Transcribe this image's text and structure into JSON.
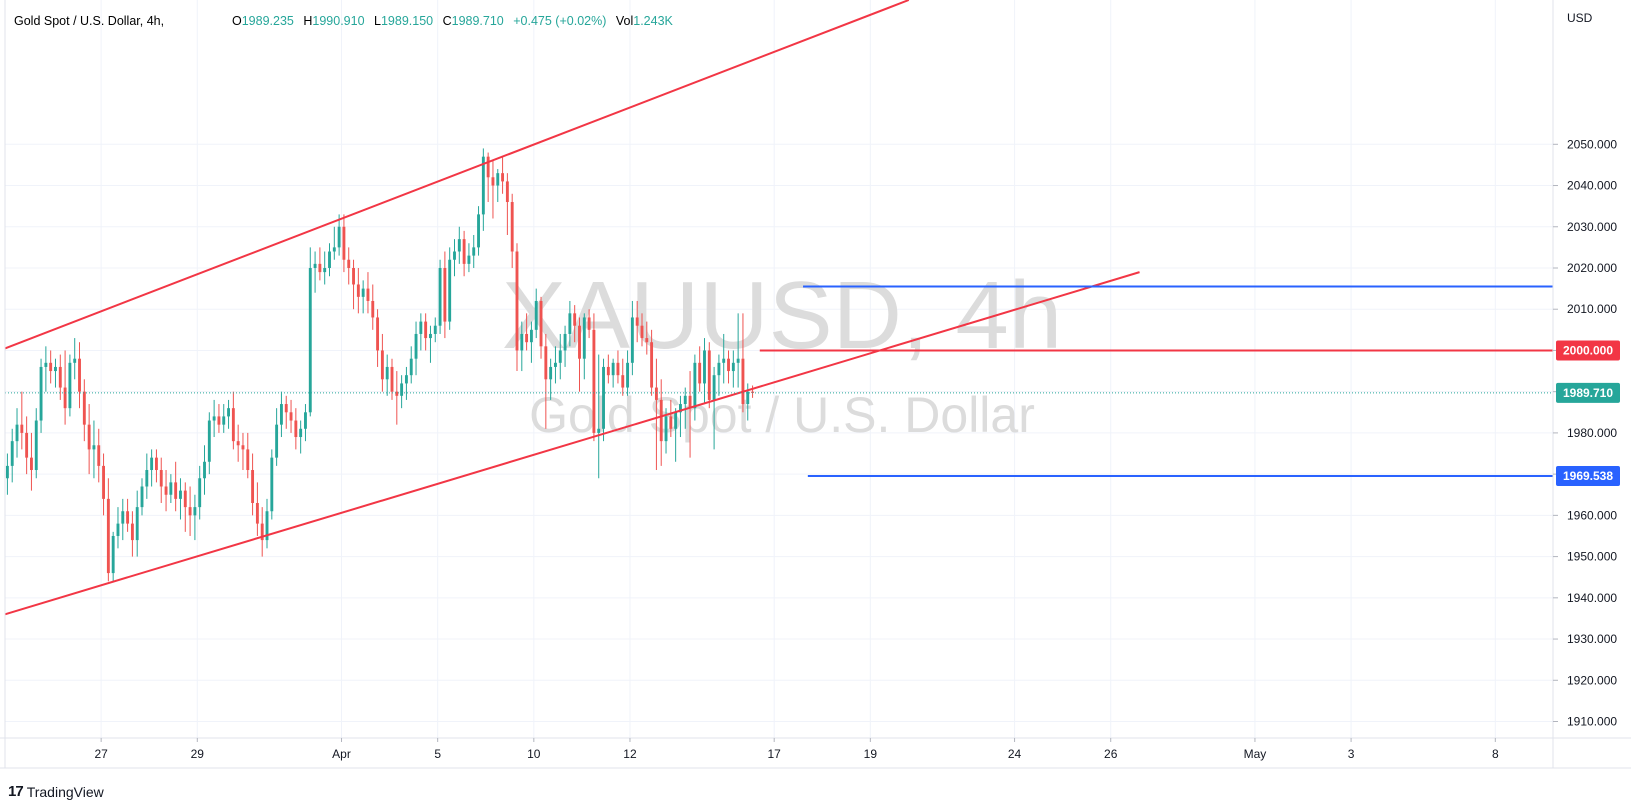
{
  "header": {
    "symbol": "Gold Spot / U.S. Dollar, 4h,",
    "o_label": "O",
    "o_val": "1989.235",
    "h_label": "H",
    "h_val": "1990.910",
    "l_label": "L",
    "l_val": "1989.150",
    "c_label": "C",
    "c_val": "1989.710",
    "change": "+0.475 (+0.02%)",
    "vol_label": "Vol",
    "vol_val": "1.243K"
  },
  "watermark": {
    "ticker": "XAUUSD, 4h",
    "name": "Gold Spot / U.S. Dollar"
  },
  "axis": {
    "currency": "USD"
  },
  "price_tags": {
    "current": "1989.710",
    "resistance": "2000.000",
    "support": "1969.538"
  },
  "brand": {
    "logo": "17",
    "name": "TradingView"
  },
  "colors": {
    "up": "#26a69a",
    "down": "#ef5350",
    "red_line": "#f23645",
    "blue_line": "#2962ff",
    "grid": "#f0f3fa",
    "current": "#26a69a"
  },
  "chart_data": {
    "type": "candlestick",
    "ylim": [
      1906,
      2085
    ],
    "x_range": [
      0,
      322
    ],
    "y_ticks": [
      1910,
      1920,
      1930,
      1940,
      1950,
      1960,
      1970,
      1980,
      1990,
      2000,
      2010,
      2020,
      2030,
      2040,
      2050
    ],
    "x_ticks": [
      {
        "label": "27",
        "x": 20
      },
      {
        "label": "29",
        "x": 40
      },
      {
        "label": "Apr",
        "x": 70
      },
      {
        "label": "5",
        "x": 90
      },
      {
        "label": "10",
        "x": 110
      },
      {
        "label": "12",
        "x": 130
      },
      {
        "label": "17",
        "x": 160
      },
      {
        "label": "19",
        "x": 180
      },
      {
        "label": "24",
        "x": 210
      },
      {
        "label": "26",
        "x": 230
      },
      {
        "label": "May",
        "x": 260
      },
      {
        "label": "3",
        "x": 280
      },
      {
        "label": "8",
        "x": 310
      }
    ],
    "candles": [
      [
        1969,
        1975,
        1965,
        1972
      ],
      [
        1972,
        1981,
        1968,
        1978
      ],
      [
        1978,
        1986,
        1974,
        1982
      ],
      [
        1982,
        1990,
        1976,
        1980
      ],
      [
        1980,
        1984,
        1970,
        1974
      ],
      [
        1974,
        1980,
        1966,
        1971
      ],
      [
        1971,
        1986,
        1969,
        1983
      ],
      [
        1983,
        1998,
        1980,
        1996
      ],
      [
        1996,
        2001,
        1990,
        1997
      ],
      [
        1997,
        2000,
        1992,
        1995
      ],
      [
        1995,
        1998,
        1991,
        1996
      ],
      [
        1996,
        1999,
        1988,
        1991
      ],
      [
        1991,
        2000,
        1982,
        1986
      ],
      [
        1986,
        1999,
        1984,
        1997
      ],
      [
        1997,
        2003,
        1993,
        1998
      ],
      [
        1998,
        2002,
        1986,
        1990
      ],
      [
        1990,
        1993,
        1978,
        1982
      ],
      [
        1982,
        1987,
        1970,
        1976
      ],
      [
        1976,
        1983,
        1969,
        1977
      ],
      [
        1977,
        1981,
        1968,
        1972
      ],
      [
        1972,
        1975,
        1960,
        1964
      ],
      [
        1964,
        1969,
        1944,
        1946
      ],
      [
        1946,
        1956,
        1944,
        1955
      ],
      [
        1955,
        1962,
        1952,
        1958
      ],
      [
        1958,
        1964,
        1954,
        1961
      ],
      [
        1961,
        1964,
        1956,
        1958
      ],
      [
        1958,
        1961,
        1950,
        1954
      ],
      [
        1954,
        1966,
        1950,
        1962
      ],
      [
        1962,
        1969,
        1960,
        1967
      ],
      [
        1967,
        1975,
        1964,
        1971
      ],
      [
        1971,
        1976,
        1967,
        1974
      ],
      [
        1974,
        1976,
        1968,
        1971
      ],
      [
        1971,
        1974,
        1963,
        1967
      ],
      [
        1967,
        1971,
        1961,
        1965
      ],
      [
        1965,
        1970,
        1963,
        1968
      ],
      [
        1968,
        1973,
        1961,
        1964
      ],
      [
        1964,
        1969,
        1959,
        1966
      ],
      [
        1966,
        1968,
        1956,
        1962
      ],
      [
        1962,
        1967,
        1955,
        1960
      ],
      [
        1960,
        1965,
        1954,
        1962
      ],
      [
        1962,
        1972,
        1959,
        1969
      ],
      [
        1969,
        1977,
        1965,
        1973
      ],
      [
        1973,
        1985,
        1970,
        1983
      ],
      [
        1983,
        1988,
        1979,
        1984
      ],
      [
        1984,
        1987,
        1980,
        1982
      ],
      [
        1982,
        1987,
        1980,
        1984
      ],
      [
        1984,
        1988,
        1981,
        1986
      ],
      [
        1986,
        1990,
        1976,
        1978
      ],
      [
        1978,
        1982,
        1973,
        1977
      ],
      [
        1977,
        1980,
        1971,
        1976
      ],
      [
        1976,
        1980,
        1969,
        1971
      ],
      [
        1971,
        1975,
        1960,
        1963
      ],
      [
        1963,
        1968,
        1955,
        1958
      ],
      [
        1958,
        1962,
        1950,
        1954
      ],
      [
        1954,
        1964,
        1952,
        1961
      ],
      [
        1961,
        1976,
        1959,
        1974
      ],
      [
        1974,
        1986,
        1972,
        1982
      ],
      [
        1982,
        1990,
        1979,
        1987
      ],
      [
        1987,
        1989,
        1981,
        1985
      ],
      [
        1985,
        1988,
        1980,
        1983
      ],
      [
        1983,
        1986,
        1976,
        1979
      ],
      [
        1979,
        1983,
        1975,
        1981
      ],
      [
        1981,
        1987,
        1978,
        1985
      ],
      [
        1985,
        2025,
        1984,
        2020
      ],
      [
        2020,
        2024,
        2014,
        2021
      ],
      [
        2021,
        2025,
        2017,
        2019
      ],
      [
        2019,
        2024,
        2016,
        2020
      ],
      [
        2020,
        2026,
        2018,
        2024
      ],
      [
        2024,
        2030,
        2022,
        2025
      ],
      [
        2025,
        2033,
        2023,
        2030
      ],
      [
        2030,
        2033,
        2019,
        2022
      ],
      [
        2022,
        2025,
        2016,
        2020
      ],
      [
        2020,
        2022,
        2010,
        2016
      ],
      [
        2016,
        2020,
        2009,
        2013
      ],
      [
        2013,
        2017,
        2009,
        2015
      ],
      [
        2015,
        2019,
        2009,
        2012
      ],
      [
        2012,
        2016,
        2005,
        2008
      ],
      [
        2008,
        2010,
        1996,
        2000
      ],
      [
        2000,
        2004,
        1990,
        1993
      ],
      [
        1993,
        1999,
        1989,
        1996
      ],
      [
        1996,
        1998,
        1988,
        1990
      ],
      [
        1990,
        1995,
        1982,
        1989
      ],
      [
        1989,
        1994,
        1986,
        1992
      ],
      [
        1992,
        1996,
        1988,
        1994
      ],
      [
        1994,
        2001,
        1992,
        1998
      ],
      [
        1998,
        2007,
        1994,
        2004
      ],
      [
        2004,
        2009,
        2000,
        2007
      ],
      [
        2007,
        2009,
        2000,
        2003
      ],
      [
        2003,
        2006,
        1997,
        2004
      ],
      [
        2004,
        2008,
        2002,
        2006
      ],
      [
        2006,
        2022,
        2004,
        2020
      ],
      [
        2020,
        2024,
        2003,
        2007
      ],
      [
        2007,
        2025,
        2005,
        2022
      ],
      [
        2022,
        2027,
        2018,
        2024
      ],
      [
        2024,
        2030,
        2021,
        2027
      ],
      [
        2027,
        2029,
        2018,
        2021
      ],
      [
        2021,
        2026,
        2019,
        2023
      ],
      [
        2023,
        2028,
        2020,
        2025
      ],
      [
        2025,
        2035,
        2023,
        2033
      ],
      [
        2033,
        2049,
        2029,
        2047
      ],
      [
        2047,
        2048,
        2036,
        2042
      ],
      [
        2042,
        2046,
        2032,
        2040
      ],
      [
        2040,
        2044,
        2036,
        2043
      ],
      [
        2043,
        2047,
        2038,
        2041
      ],
      [
        2041,
        2043,
        2028,
        2036
      ],
      [
        2036,
        2038,
        2020,
        2024
      ],
      [
        2024,
        2026,
        1995,
        2000
      ],
      [
        2000,
        2007,
        1995,
        2004
      ],
      [
        2004,
        2009,
        2000,
        2002
      ],
      [
        2002,
        2007,
        1997,
        2005
      ],
      [
        2005,
        2015,
        2003,
        2012
      ],
      [
        2012,
        2013,
        1998,
        2001
      ],
      [
        2001,
        2004,
        1981,
        1993
      ],
      [
        1993,
        1998,
        1988,
        1996
      ],
      [
        1996,
        2001,
        1992,
        1997
      ],
      [
        1997,
        2004,
        1993,
        2000
      ],
      [
        2000,
        2006,
        1996,
        2004
      ],
      [
        2004,
        2012,
        2001,
        2009
      ],
      [
        2009,
        2011,
        2002,
        2006
      ],
      [
        2006,
        2008,
        1990,
        1998
      ],
      [
        1998,
        2009,
        1993,
        2008
      ],
      [
        2008,
        2010,
        2003,
        2005
      ],
      [
        2005,
        2009,
        1978,
        1980
      ],
      [
        1980,
        1999,
        1969,
        1981
      ],
      [
        1981,
        1998,
        1978,
        1996
      ],
      [
        1996,
        1999,
        1992,
        1994
      ],
      [
        1994,
        1998,
        1991,
        1997
      ],
      [
        1997,
        2000,
        1992,
        1994
      ],
      [
        1994,
        1998,
        1989,
        1991
      ],
      [
        1991,
        2000,
        1989,
        1997
      ],
      [
        1997,
        2012,
        1994,
        2008
      ],
      [
        2008,
        2012,
        2002,
        2006
      ],
      [
        2006,
        2009,
        2001,
        2003
      ],
      [
        2003,
        2007,
        1999,
        2002
      ],
      [
        2002,
        2005,
        1989,
        1991
      ],
      [
        1991,
        1998,
        1971,
        1988
      ],
      [
        1988,
        1993,
        1972,
        1978
      ],
      [
        1978,
        1986,
        1975,
        1984
      ],
      [
        1984,
        1988,
        1979,
        1981
      ],
      [
        1981,
        1986,
        1973,
        1985
      ],
      [
        1985,
        1989,
        1979,
        1987
      ],
      [
        1987,
        1991,
        1981,
        1989
      ],
      [
        1989,
        1995,
        1974,
        1986
      ],
      [
        1986,
        1999,
        1983,
        1997
      ],
      [
        1997,
        2001,
        1990,
        1992
      ],
      [
        1992,
        2003,
        1987,
        2000
      ],
      [
        2000,
        2002,
        1986,
        1988
      ],
      [
        1988,
        1996,
        1976,
        1994
      ],
      [
        1994,
        1999,
        1989,
        1997
      ],
      [
        1997,
        2004,
        1992,
        1998
      ],
      [
        1998,
        2000,
        1992,
        1995
      ],
      [
        1995,
        2000,
        1991,
        1997
      ],
      [
        1997,
        2009,
        1991,
        1998
      ],
      [
        1998,
        2009,
        1985,
        1987
      ],
      [
        1987,
        1992,
        1983,
        1990
      ],
      [
        1990,
        1991.5,
        1988.5,
        1989.7
      ]
    ],
    "lines": [
      {
        "kind": "trend",
        "color": "red",
        "from": [
          0,
          2000.5
        ],
        "to": [
          188,
          2085
        ]
      },
      {
        "kind": "trend",
        "color": "red",
        "from": [
          0,
          1936
        ],
        "to": [
          236,
          2019
        ]
      },
      {
        "kind": "horizontal",
        "color": "red",
        "from": [
          157,
          2000
        ],
        "to": [
          322,
          2000
        ]
      },
      {
        "kind": "horizontal",
        "color": "blue",
        "from": [
          166,
          2015.5
        ],
        "to": [
          322,
          2015.5
        ]
      },
      {
        "kind": "horizontal",
        "color": "blue",
        "from": [
          167,
          1969.538
        ],
        "to": [
          322,
          1969.538
        ]
      }
    ],
    "current_price": 1989.71
  }
}
